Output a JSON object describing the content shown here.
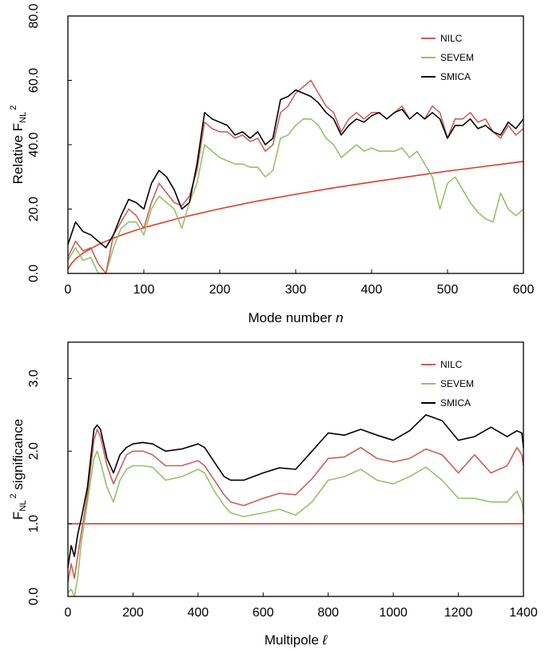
{
  "colors": {
    "NILC": "#c9605a",
    "SEVEM": "#94c26a",
    "SMICA": "#000000",
    "reference": "#e03a28"
  },
  "chart_data": [
    {
      "type": "line",
      "xlabel": "Mode number n",
      "xlabel_main": "Mode number ",
      "xlabel_var": "n",
      "ylabel": "Relative F_NL^2",
      "ylabel_parts": {
        "base": "Relative F",
        "sub": "NL",
        "sup": "2"
      },
      "xlim": [
        0,
        600
      ],
      "ylim": [
        0,
        80
      ],
      "xticks": [
        "0",
        "100",
        "200",
        "300",
        "400",
        "500",
        "600"
      ],
      "yticks": [
        "0.0",
        "20.0",
        "40.0",
        "60.0",
        "80.0"
      ],
      "legend_position": "top-right",
      "grid": false,
      "series": [
        {
          "name": "NILC",
          "x": [
            0,
            10,
            20,
            30,
            40,
            50,
            60,
            70,
            80,
            90,
            100,
            110,
            120,
            130,
            140,
            150,
            160,
            170,
            180,
            190,
            200,
            210,
            220,
            230,
            240,
            250,
            260,
            270,
            280,
            290,
            300,
            310,
            320,
            330,
            340,
            350,
            360,
            370,
            380,
            390,
            400,
            410,
            420,
            430,
            440,
            450,
            460,
            470,
            480,
            490,
            500,
            510,
            520,
            530,
            540,
            550,
            560,
            570,
            580,
            590,
            600
          ],
          "y": [
            5,
            10,
            7,
            8,
            3,
            0,
            12,
            16,
            20,
            18,
            14,
            22,
            28,
            25,
            22,
            21,
            24,
            32,
            47,
            45,
            44,
            44,
            42,
            43,
            41,
            42,
            38,
            40,
            50,
            52,
            56,
            58,
            60,
            56,
            52,
            50,
            44,
            48,
            50,
            48,
            50,
            50,
            48,
            50,
            52,
            48,
            50,
            48,
            52,
            50,
            42,
            48,
            48,
            50,
            47,
            48,
            44,
            42,
            46,
            43,
            45
          ]
        },
        {
          "name": "SEVEM",
          "x": [
            0,
            10,
            20,
            30,
            40,
            50,
            60,
            70,
            80,
            90,
            100,
            110,
            120,
            130,
            140,
            150,
            160,
            170,
            180,
            190,
            200,
            210,
            220,
            230,
            240,
            250,
            260,
            270,
            280,
            290,
            300,
            310,
            320,
            330,
            340,
            350,
            360,
            370,
            380,
            390,
            400,
            410,
            420,
            430,
            440,
            450,
            460,
            470,
            480,
            490,
            500,
            510,
            520,
            530,
            540,
            550,
            560,
            570,
            580,
            590,
            600
          ],
          "y": [
            4,
            8,
            4,
            5,
            0,
            0,
            8,
            14,
            16,
            16,
            12,
            20,
            24,
            22,
            20,
            14,
            22,
            28,
            40,
            38,
            36,
            35,
            34,
            34,
            33,
            33,
            30,
            32,
            42,
            43,
            46,
            48,
            48,
            46,
            42,
            40,
            36,
            38,
            40,
            38,
            39,
            38,
            38,
            38,
            39,
            36,
            38,
            34,
            30,
            20,
            28,
            30,
            26,
            22,
            19,
            17,
            16,
            25,
            20,
            18,
            20
          ]
        },
        {
          "name": "SMICA",
          "x": [
            0,
            10,
            20,
            30,
            40,
            50,
            60,
            70,
            80,
            90,
            100,
            110,
            120,
            130,
            140,
            150,
            160,
            170,
            180,
            190,
            200,
            210,
            220,
            230,
            240,
            250,
            260,
            270,
            280,
            290,
            300,
            310,
            320,
            330,
            340,
            350,
            360,
            370,
            380,
            390,
            400,
            410,
            420,
            430,
            440,
            450,
            460,
            470,
            480,
            490,
            500,
            510,
            520,
            530,
            540,
            550,
            560,
            570,
            580,
            590,
            600
          ],
          "y": [
            9,
            16,
            13,
            12,
            10,
            8,
            12,
            18,
            23,
            22,
            20,
            28,
            32,
            30,
            26,
            20,
            22,
            34,
            50,
            48,
            47,
            46,
            43,
            44,
            42,
            44,
            40,
            42,
            54,
            55,
            57,
            56,
            55,
            53,
            50,
            48,
            43,
            46,
            48,
            47,
            49,
            50,
            48,
            50,
            51,
            48,
            50,
            48,
            50,
            48,
            42,
            46,
            46,
            48,
            45,
            46,
            44,
            43,
            47,
            45,
            48
          ]
        }
      ],
      "reference_curve": {
        "x": [
          0,
          5,
          10,
          20,
          40,
          60,
          80,
          100,
          150,
          200,
          250,
          300,
          350,
          400,
          450,
          500,
          550,
          600
        ],
        "y": [
          1.4,
          3.2,
          4.5,
          6.3,
          9.0,
          11.0,
          12.7,
          14.2,
          17.4,
          20.1,
          22.5,
          24.6,
          26.6,
          28.4,
          30.1,
          31.8,
          33.3,
          34.8
        ]
      }
    },
    {
      "type": "line",
      "xlabel": "Multipole ℓ",
      "xlabel_main": "Multipole ",
      "xlabel_var": "ℓ",
      "ylabel": "F_NL^2 significance",
      "ylabel_parts": {
        "base": "F",
        "sub": "NL",
        "sup": "2",
        "rest": " significance"
      },
      "xlim": [
        0,
        1400
      ],
      "ylim": [
        0,
        3.5
      ],
      "xticks": [
        "0",
        "200",
        "400",
        "600",
        "800",
        "1000",
        "1200",
        "1400"
      ],
      "yticks": [
        "0.0",
        "1.0",
        "2.0",
        "3.0"
      ],
      "legend_position": "top-right",
      "grid": false,
      "series": [
        {
          "name": "NILC",
          "x": [
            0,
            10,
            20,
            30,
            40,
            60,
            80,
            90,
            100,
            120,
            140,
            160,
            180,
            200,
            230,
            260,
            300,
            350,
            400,
            420,
            450,
            480,
            500,
            540,
            600,
            650,
            700,
            750,
            800,
            850,
            900,
            950,
            1000,
            1050,
            1100,
            1150,
            1200,
            1250,
            1300,
            1350,
            1380,
            1395,
            1400
          ],
          "y": [
            0.2,
            0.45,
            0.25,
            0.55,
            0.85,
            1.4,
            2.15,
            2.3,
            2.2,
            1.8,
            1.55,
            1.75,
            1.95,
            2.0,
            2.0,
            1.95,
            1.8,
            1.8,
            1.87,
            1.8,
            1.6,
            1.4,
            1.3,
            1.25,
            1.35,
            1.42,
            1.4,
            1.62,
            1.9,
            1.92,
            2.05,
            1.9,
            1.85,
            1.9,
            2.03,
            1.95,
            1.7,
            1.95,
            1.7,
            1.8,
            2.05,
            1.95,
            1.8
          ]
        },
        {
          "name": "SEVEM",
          "x": [
            0,
            10,
            20,
            30,
            40,
            60,
            80,
            90,
            100,
            120,
            140,
            160,
            180,
            200,
            230,
            260,
            300,
            350,
            400,
            420,
            450,
            480,
            500,
            540,
            600,
            650,
            700,
            750,
            800,
            850,
            900,
            950,
            1000,
            1050,
            1100,
            1150,
            1200,
            1250,
            1300,
            1350,
            1380,
            1395,
            1400
          ],
          "y": [
            0.05,
            0.1,
            0.0,
            0.25,
            0.7,
            1.3,
            1.9,
            2.0,
            1.85,
            1.5,
            1.3,
            1.6,
            1.75,
            1.8,
            1.8,
            1.78,
            1.6,
            1.65,
            1.75,
            1.7,
            1.45,
            1.25,
            1.15,
            1.1,
            1.15,
            1.2,
            1.12,
            1.3,
            1.6,
            1.65,
            1.75,
            1.6,
            1.55,
            1.65,
            1.78,
            1.6,
            1.35,
            1.35,
            1.3,
            1.3,
            1.45,
            1.3,
            1.15
          ]
        },
        {
          "name": "SMICA",
          "x": [
            0,
            10,
            20,
            30,
            40,
            60,
            80,
            90,
            100,
            120,
            140,
            160,
            180,
            200,
            230,
            260,
            300,
            350,
            400,
            420,
            450,
            480,
            500,
            540,
            600,
            650,
            700,
            750,
            800,
            850,
            900,
            950,
            1000,
            1050,
            1100,
            1150,
            1200,
            1250,
            1300,
            1350,
            1380,
            1395,
            1400
          ],
          "y": [
            0.4,
            0.7,
            0.55,
            0.85,
            1.05,
            1.5,
            2.3,
            2.36,
            2.3,
            1.9,
            1.7,
            1.95,
            2.05,
            2.1,
            2.12,
            2.1,
            2.0,
            2.03,
            2.1,
            2.05,
            1.85,
            1.65,
            1.6,
            1.6,
            1.7,
            1.77,
            1.75,
            2.0,
            2.25,
            2.22,
            2.3,
            2.22,
            2.15,
            2.28,
            2.5,
            2.42,
            2.15,
            2.2,
            2.33,
            2.2,
            2.28,
            2.25,
            2.05
          ]
        }
      ],
      "reference_curve": {
        "x": [
          0,
          1400
        ],
        "y": [
          1.0,
          1.0
        ]
      }
    }
  ]
}
